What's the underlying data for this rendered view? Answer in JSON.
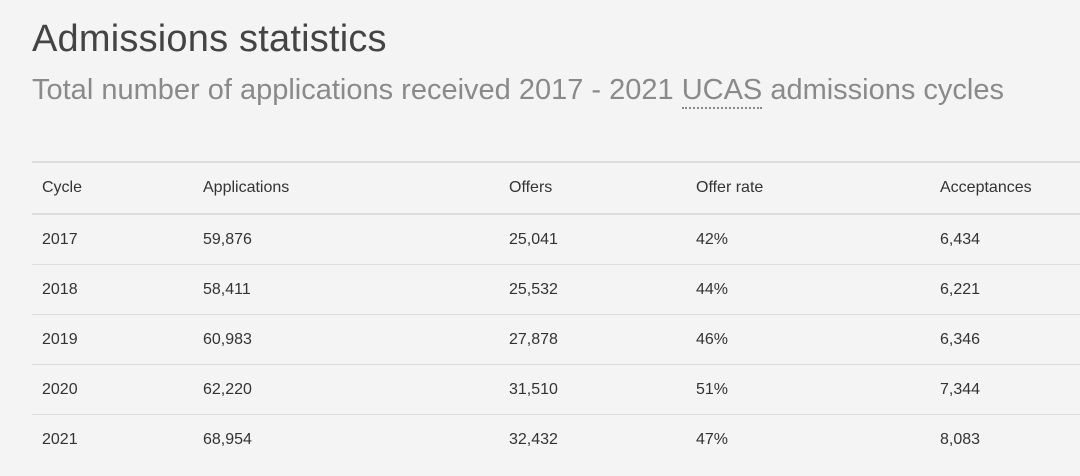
{
  "page": {
    "title": "Admissions statistics",
    "subtitle_before": "Total number of applications received 2017 - 2021 ",
    "subtitle_abbr": "UCAS",
    "subtitle_after": " admissions cycles"
  },
  "table": {
    "headers": [
      "Cycle",
      "Applications",
      "Offers",
      "Offer rate",
      "Acceptances"
    ],
    "rows": [
      [
        "2017",
        "59,876",
        "25,041",
        "42%",
        "6,434"
      ],
      [
        "2018",
        "58,411",
        "25,532",
        "44%",
        "6,221"
      ],
      [
        "2019",
        "60,983",
        "27,878",
        "46%",
        "6,346"
      ],
      [
        "2020",
        "62,220",
        "31,510",
        "51%",
        "7,344"
      ],
      [
        "2021",
        "68,954",
        "32,432",
        "47%",
        "8,083"
      ]
    ]
  },
  "colors": {
    "background": "#f4f4f4",
    "title": "#444444",
    "subtitle": "#8a8a8a",
    "text": "#333333",
    "rule": "#dddddd"
  }
}
